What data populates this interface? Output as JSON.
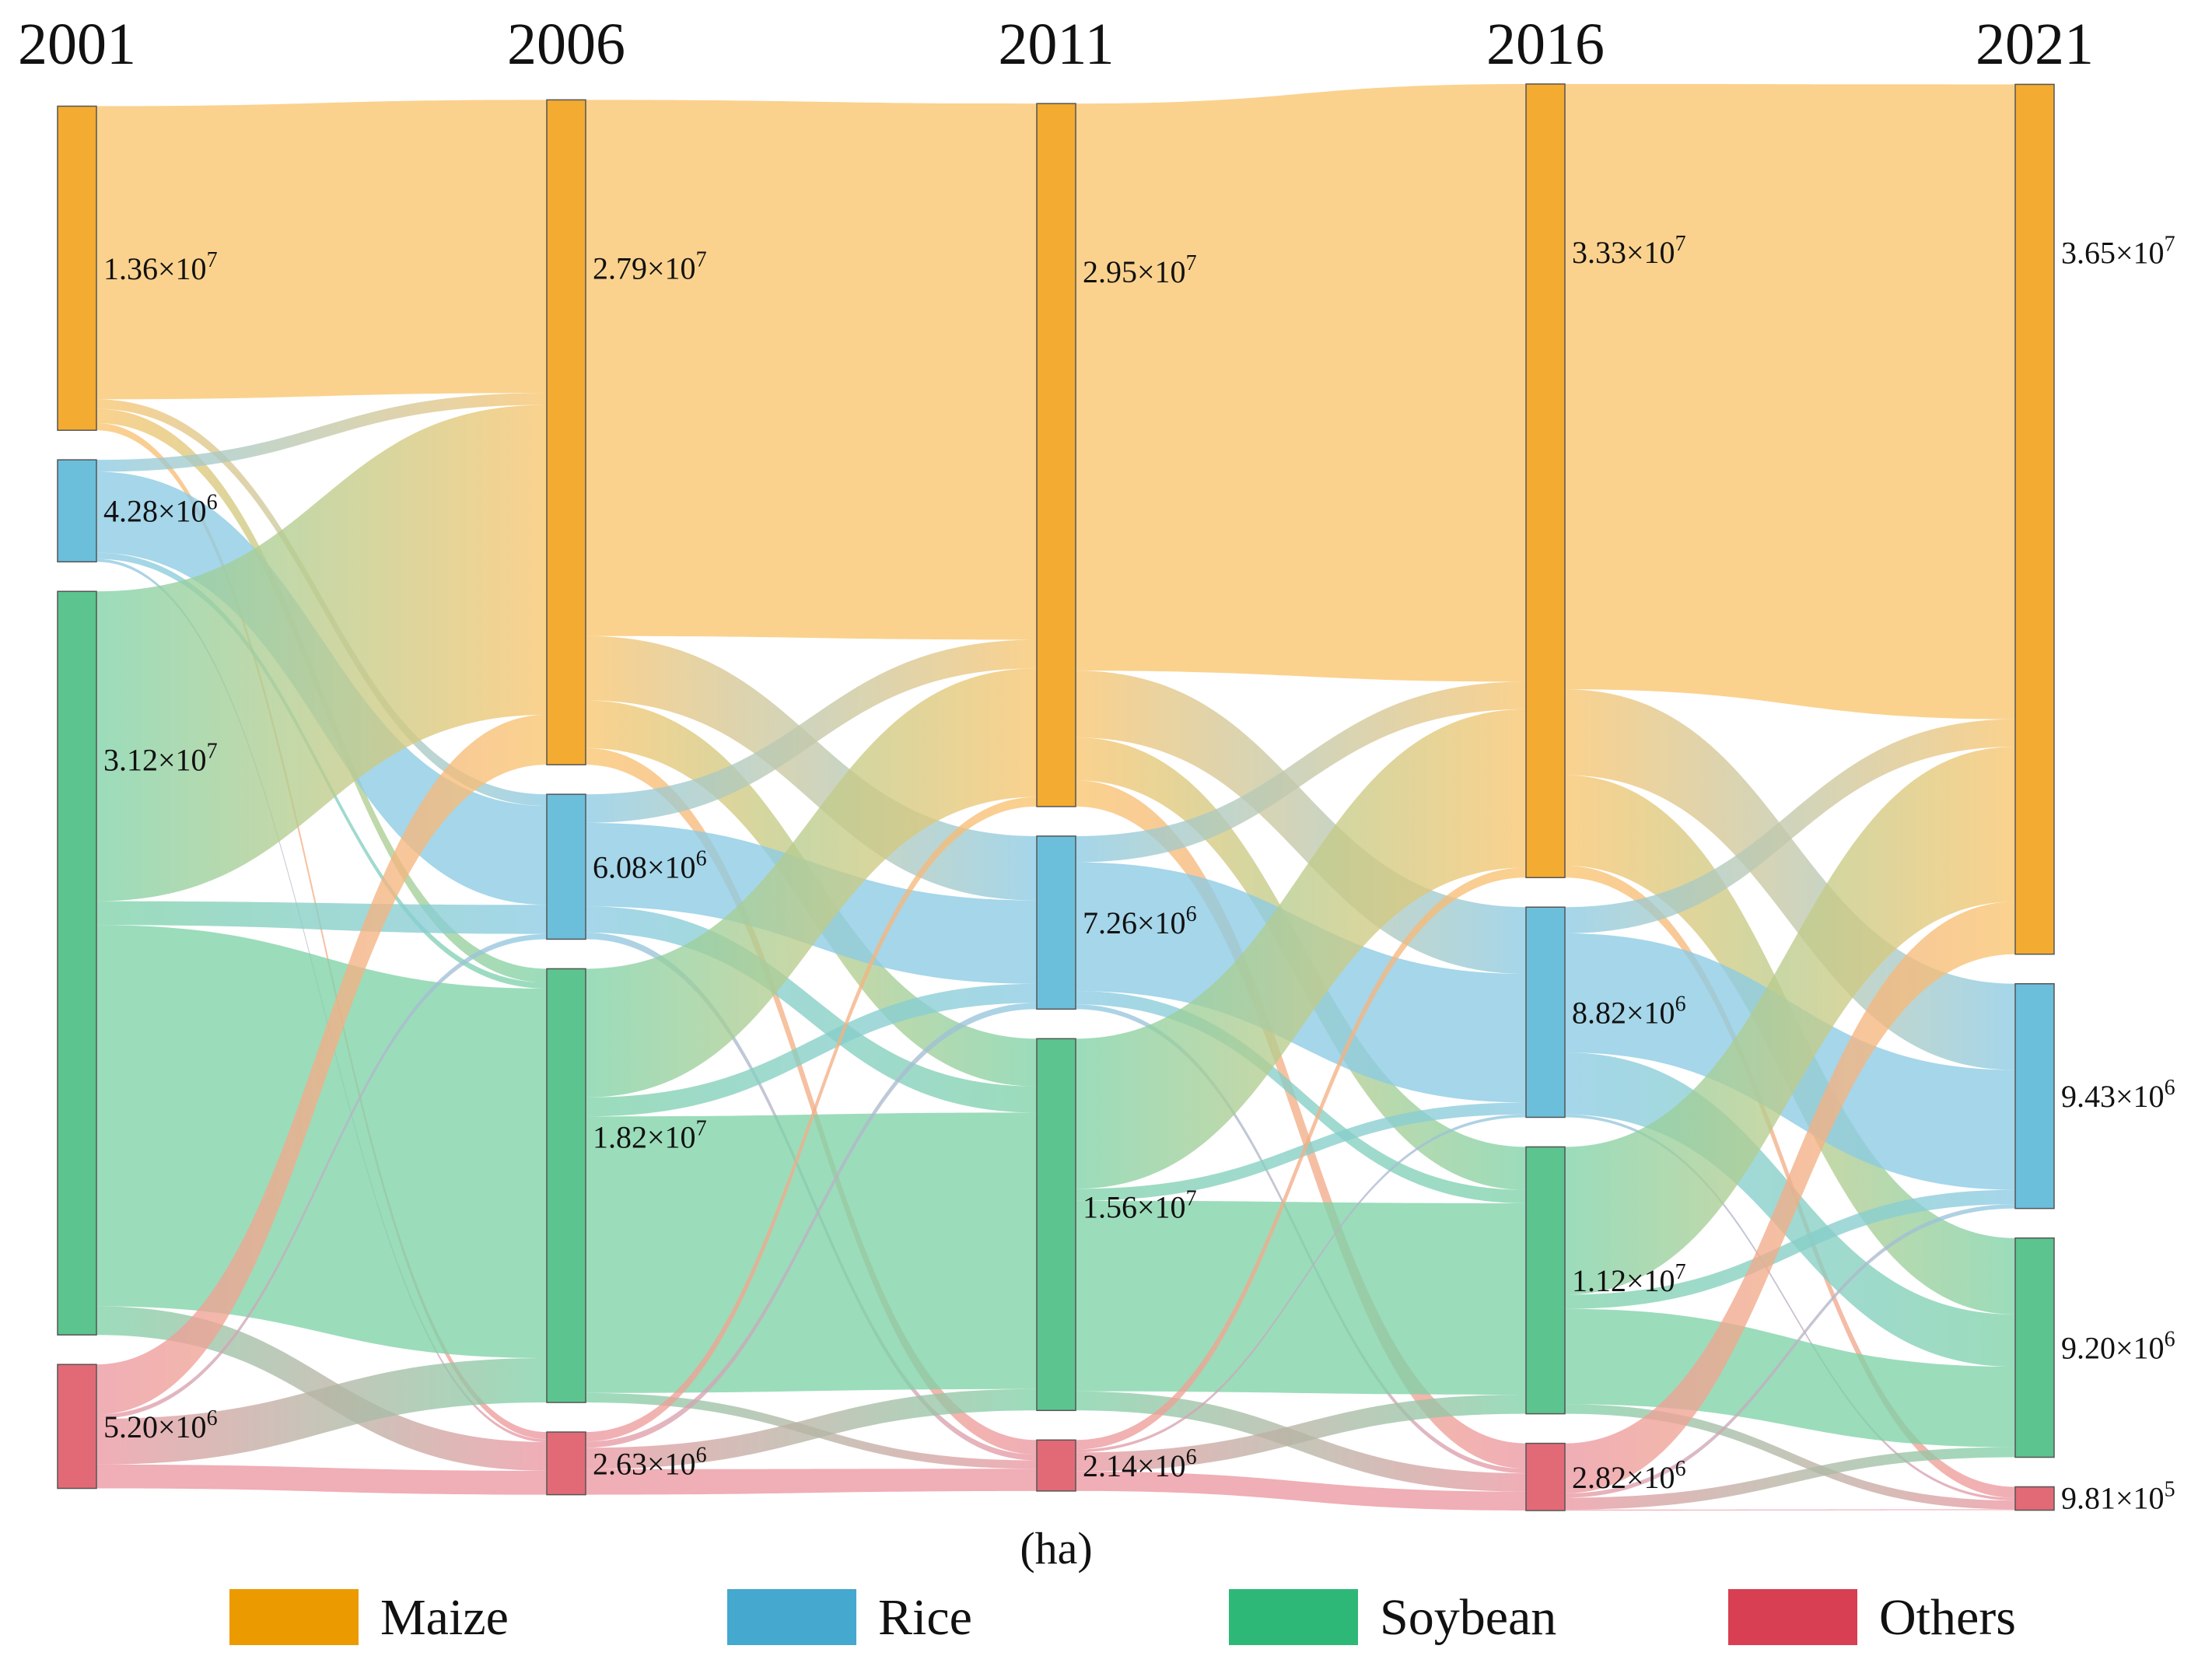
{
  "chart_data": {
    "type": "sankey",
    "unit": "(ha)",
    "years": [
      "2001",
      "2006",
      "2011",
      "2016",
      "2021"
    ],
    "categories": [
      "Maize",
      "Rice",
      "Soybean",
      "Others"
    ],
    "colors": {
      "Maize": {
        "node": "#f3ab31",
        "link": "#f9c56e",
        "legend": "#eb9b00"
      },
      "Rice": {
        "node": "#6bbfdb",
        "link": "#8ccbe4",
        "legend": "#44a8cf"
      },
      "Soybean": {
        "node": "#5cc48f",
        "link": "#7fd2a8",
        "legend": "#2eb877"
      },
      "Others": {
        "node": "#e26a77",
        "link": "#ec97a1",
        "legend": "#d83f52"
      }
    },
    "nodes": {
      "2001": [
        {
          "category": "Maize",
          "value": 13600000.0,
          "mantissa": "1.36",
          "exponent": "7"
        },
        {
          "category": "Rice",
          "value": 4280000.0,
          "mantissa": "4.28",
          "exponent": "6"
        },
        {
          "category": "Soybean",
          "value": 31200000.0,
          "mantissa": "3.12",
          "exponent": "7"
        },
        {
          "category": "Others",
          "value": 5200000.0,
          "mantissa": "5.20",
          "exponent": "6"
        }
      ],
      "2006": [
        {
          "category": "Maize",
          "value": 27900000.0,
          "mantissa": "2.79",
          "exponent": "7"
        },
        {
          "category": "Rice",
          "value": 6080000.0,
          "mantissa": "6.08",
          "exponent": "6"
        },
        {
          "category": "Soybean",
          "value": 18200000.0,
          "mantissa": "1.82",
          "exponent": "7"
        },
        {
          "category": "Others",
          "value": 2630000.0,
          "mantissa": "2.63",
          "exponent": "6"
        }
      ],
      "2011": [
        {
          "category": "Maize",
          "value": 29500000.0,
          "mantissa": "2.95",
          "exponent": "7"
        },
        {
          "category": "Rice",
          "value": 7260000.0,
          "mantissa": "7.26",
          "exponent": "6"
        },
        {
          "category": "Soybean",
          "value": 15600000.0,
          "mantissa": "1.56",
          "exponent": "7"
        },
        {
          "category": "Others",
          "value": 2140000.0,
          "mantissa": "2.14",
          "exponent": "6"
        }
      ],
      "2016": [
        {
          "category": "Maize",
          "value": 33300000.0,
          "mantissa": "3.33",
          "exponent": "7"
        },
        {
          "category": "Rice",
          "value": 8820000.0,
          "mantissa": "8.82",
          "exponent": "6"
        },
        {
          "category": "Soybean",
          "value": 11200000.0,
          "mantissa": "1.12",
          "exponent": "7"
        },
        {
          "category": "Others",
          "value": 2820000.0,
          "mantissa": "2.82",
          "exponent": "6"
        }
      ],
      "2021": [
        {
          "category": "Maize",
          "value": 36500000.0,
          "mantissa": "3.65",
          "exponent": "7"
        },
        {
          "category": "Rice",
          "value": 9430000.0,
          "mantissa": "9.43",
          "exponent": "6"
        },
        {
          "category": "Soybean",
          "value": 9200000.0,
          "mantissa": "9.20",
          "exponent": "6"
        },
        {
          "category": "Others",
          "value": 981000.0,
          "mantissa": "9.81",
          "exponent": "5"
        }
      ]
    },
    "flows": [
      {
        "from_year": "2001",
        "to_year": "2006",
        "matrix": [
          [
            12300000.0,
            400000.0,
            600000.0,
            300000.0
          ],
          [
            500000.0,
            3400000.0,
            260000.0,
            120000.0
          ],
          [
            13000000.0,
            1000000.0,
            16000000.0,
            1200000.0
          ],
          [
            2100000.0,
            180000.0,
            1920000.0,
            1000000.0
          ]
        ]
      },
      {
        "from_year": "2006",
        "to_year": "2011",
        "matrix": [
          [
            22500000.0,
            2700000.0,
            2000000.0,
            700000.0
          ],
          [
            1200000.0,
            3500000.0,
            1100000.0,
            280000.0
          ],
          [
            5400000.0,
            800000.0,
            11600000.0,
            400000.0
          ],
          [
            400000.0,
            260000.0,
            900000.0,
            1070000.0
          ]
        ]
      },
      {
        "from_year": "2011",
        "to_year": "2016",
        "matrix": [
          [
            23800000.0,
            2800000.0,
            1800000.0,
            1100000.0
          ],
          [
            1100000.0,
            5400000.0,
            560000.0,
            200000.0
          ],
          [
            6300000.0,
            500000.0,
            8000000.0,
            800000.0
          ],
          [
            400000.0,
            120000.0,
            800000.0,
            820000.0
          ]
        ]
      },
      {
        "from_year": "2016",
        "to_year": "2021",
        "matrix": [
          [
            25400000.0,
            3600000.0,
            3800000.0,
            500000.0
          ],
          [
            1100000.0,
            5000000.0,
            2600000.0,
            120000.0
          ],
          [
            6200000.0,
            600000.0,
            4000000.0,
            400000.0
          ],
          [
            2100000.0,
            180000.0,
            500000.0,
            40000.0
          ]
        ]
      }
    ]
  }
}
